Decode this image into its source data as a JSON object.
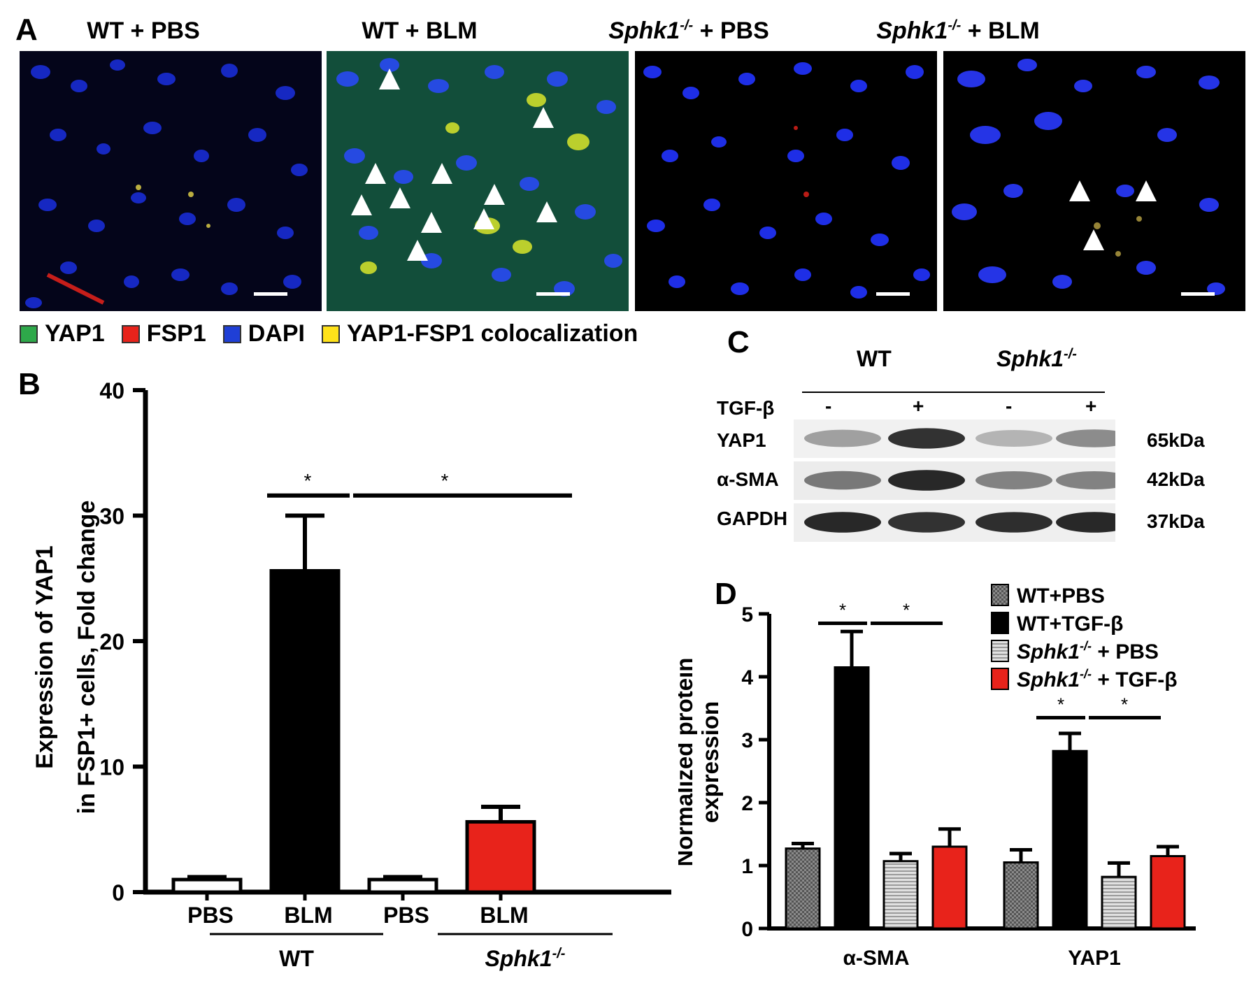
{
  "panel_a": {
    "letter": "A",
    "panels": [
      {
        "title_main": "WT + PBS",
        "title_suffix": ""
      },
      {
        "title_main": "WT + BLM",
        "title_suffix": ""
      },
      {
        "title_main": "Sphk1",
        "title_sup": "-/-",
        "title_suffix": " + PBS"
      },
      {
        "title_main": "Sphk1",
        "title_sup": "-/-",
        "title_suffix": " + BLM"
      }
    ],
    "legend": [
      {
        "label": "YAP1",
        "color": "#2ea84a"
      },
      {
        "label": "FSP1",
        "color": "#e8231b"
      },
      {
        "label": "DAPI",
        "color": "#1f3fd6"
      },
      {
        "label": "YAP1-FSP1 colocalization",
        "color": "#ffe21a"
      }
    ]
  },
  "panel_b": {
    "letter": "B",
    "ylabel_line1": "Expression of YAP1",
    "ylabel_line2": "in FSP1+ cells, Fold change",
    "ticks": [
      "0",
      "10",
      "20",
      "30",
      "40"
    ],
    "group_labels": [
      "WT",
      "Sphk1"
    ],
    "group_sup": "-/-",
    "sig": "*"
  },
  "panel_c": {
    "letter": "C",
    "groups": [
      "WT",
      "Sphk1"
    ],
    "group_sup": "-/-",
    "treatment_label": "TGF-β",
    "signs": [
      "-",
      "+",
      "-",
      "+"
    ],
    "rows": [
      {
        "label": "YAP1",
        "kda": "65kDa",
        "intensity": [
          0.35,
          0.9,
          0.25,
          0.45
        ]
      },
      {
        "label": "α-SMA",
        "kda": "42kDa",
        "intensity": [
          0.55,
          0.95,
          0.5,
          0.5
        ]
      },
      {
        "label": "GAPDH",
        "kda": "37kDa",
        "intensity": [
          0.95,
          0.9,
          0.92,
          0.95
        ]
      }
    ]
  },
  "panel_d": {
    "letter": "D",
    "ylabel_line1": "Normalized protein",
    "ylabel_line2": "expression",
    "ticks": [
      "0",
      "1",
      "2",
      "3",
      "4",
      "5"
    ],
    "legend": [
      {
        "main": "WT+PBS",
        "sup": "",
        "suffix": ""
      },
      {
        "main": "WT+TGF-β",
        "sup": "",
        "suffix": ""
      },
      {
        "main": "Sphk1",
        "sup": "-/-",
        "suffix": " + PBS"
      },
      {
        "main": "Sphk1",
        "sup": "-/-",
        "suffix": " + TGF-β"
      }
    ],
    "sig": "*"
  },
  "chart_data": [
    {
      "type": "bar",
      "panel": "B",
      "categories": [
        "PBS",
        "BLM",
        "PBS",
        "BLM"
      ],
      "groups": [
        "WT",
        "WT",
        "Sphk1-/-",
        "Sphk1-/-"
      ],
      "values": [
        1.0,
        25.6,
        1.0,
        5.6
      ],
      "errors": [
        0.2,
        4.4,
        0.2,
        1.2
      ],
      "colors": [
        "#ffffff",
        "#000000",
        "#ffffff",
        "#e8231b"
      ],
      "ylabel": "Expression of YAP1 in FSP1+ cells, Fold change",
      "ylim": [
        0,
        40
      ],
      "significance": [
        [
          "PBS",
          "BLM",
          "*"
        ],
        [
          "BLM",
          "BLM",
          "*"
        ]
      ]
    },
    {
      "type": "bar",
      "panel": "D",
      "categories": [
        "α-SMA",
        "YAP1"
      ],
      "series": [
        {
          "name": "WT+PBS",
          "values": [
            1.27,
            1.05
          ],
          "errors": [
            0.08,
            0.2
          ],
          "color": "#8a8a8a",
          "pattern": "checker"
        },
        {
          "name": "WT+TGF-β",
          "values": [
            4.15,
            2.82
          ],
          "errors": [
            0.57,
            0.28
          ],
          "color": "#000000",
          "pattern": "solid"
        },
        {
          "name": "Sphk1-/- + PBS",
          "values": [
            1.07,
            0.82
          ],
          "errors": [
            0.12,
            0.22
          ],
          "color": "#bdbdbd",
          "pattern": "lines"
        },
        {
          "name": "Sphk1-/- + TGF-β",
          "values": [
            1.3,
            1.15
          ],
          "errors": [
            0.28,
            0.15
          ],
          "color": "#e8231b",
          "pattern": "solid"
        }
      ],
      "ylabel": "Normalized protein expression",
      "ylim": [
        0,
        5
      ]
    }
  ]
}
